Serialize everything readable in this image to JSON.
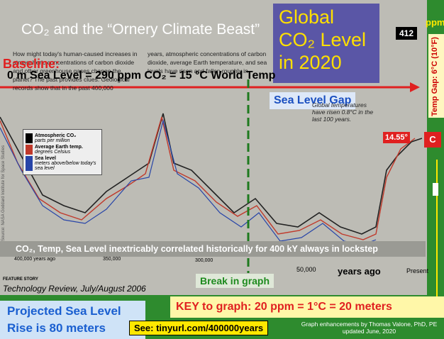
{
  "header": {
    "title": "CO₂ and the “Ornery Climate Beast”"
  },
  "article": {
    "column1": "How might today's human-caused increases in atmospheric concentrations of carbon dioxide and other greenhouse gases change the planet? The past provides clues. Geological records show that in the past 400,000",
    "column2": "years, atmospheric concentrations of carbon dioxide, average Earth temperature, and sea levels have risen and fallen roughly in tandem, in 100,000-year cycles paced by slight oscillations in Earth's orbit. These osc"
  },
  "callouts": {
    "global_co2": "Global CO₂ Level in 2020",
    "co2_value": "412",
    "ppm": "ppm",
    "temp_gap": "Temp Gap: 6°C (10°F)",
    "sea_level_gap": "Sea Level Gap",
    "baseline_label": "Baseline:",
    "baseline": "0 m Sea Level = 290 ppm CO₂ = 15 °C World Temp",
    "current_temp": "14.55°",
    "temp_unit": "C",
    "warming_note": "Global temperatures have risen 0.8°C in the last 100 years.",
    "correlation": "CO₂, Temp, Sea Level inextricably correlated historically for 400 kY always in lockstep",
    "break": "Break in graph",
    "source": "Source: NASA Goddard Institute for Space Studies"
  },
  "legend": [
    {
      "title": "Atmospheric CO₂",
      "sub": "parts per million"
    },
    {
      "title": "Average Earth temp.",
      "sub": "degrees Celsius"
    },
    {
      "title": "Sea level",
      "sub": "meters above/below today's sea level"
    }
  ],
  "axis": {
    "labels": [
      "400,000 years ago",
      "350,000",
      "300,000",
      "50,000",
      "years ago",
      "Present"
    ]
  },
  "footer": {
    "feature": "FEATURE STORY",
    "citation": "Technology Review, July/August 2006",
    "projection": "Projected Sea Level Rise is 80 meters",
    "key": "KEY to graph:  20 ppm = 1°C = 20 meters",
    "see": "See: tinyurl.com/400000years",
    "credit": "Graph enhancements by Thomas Valone, PhD, PE updated June, 2020"
  }
}
